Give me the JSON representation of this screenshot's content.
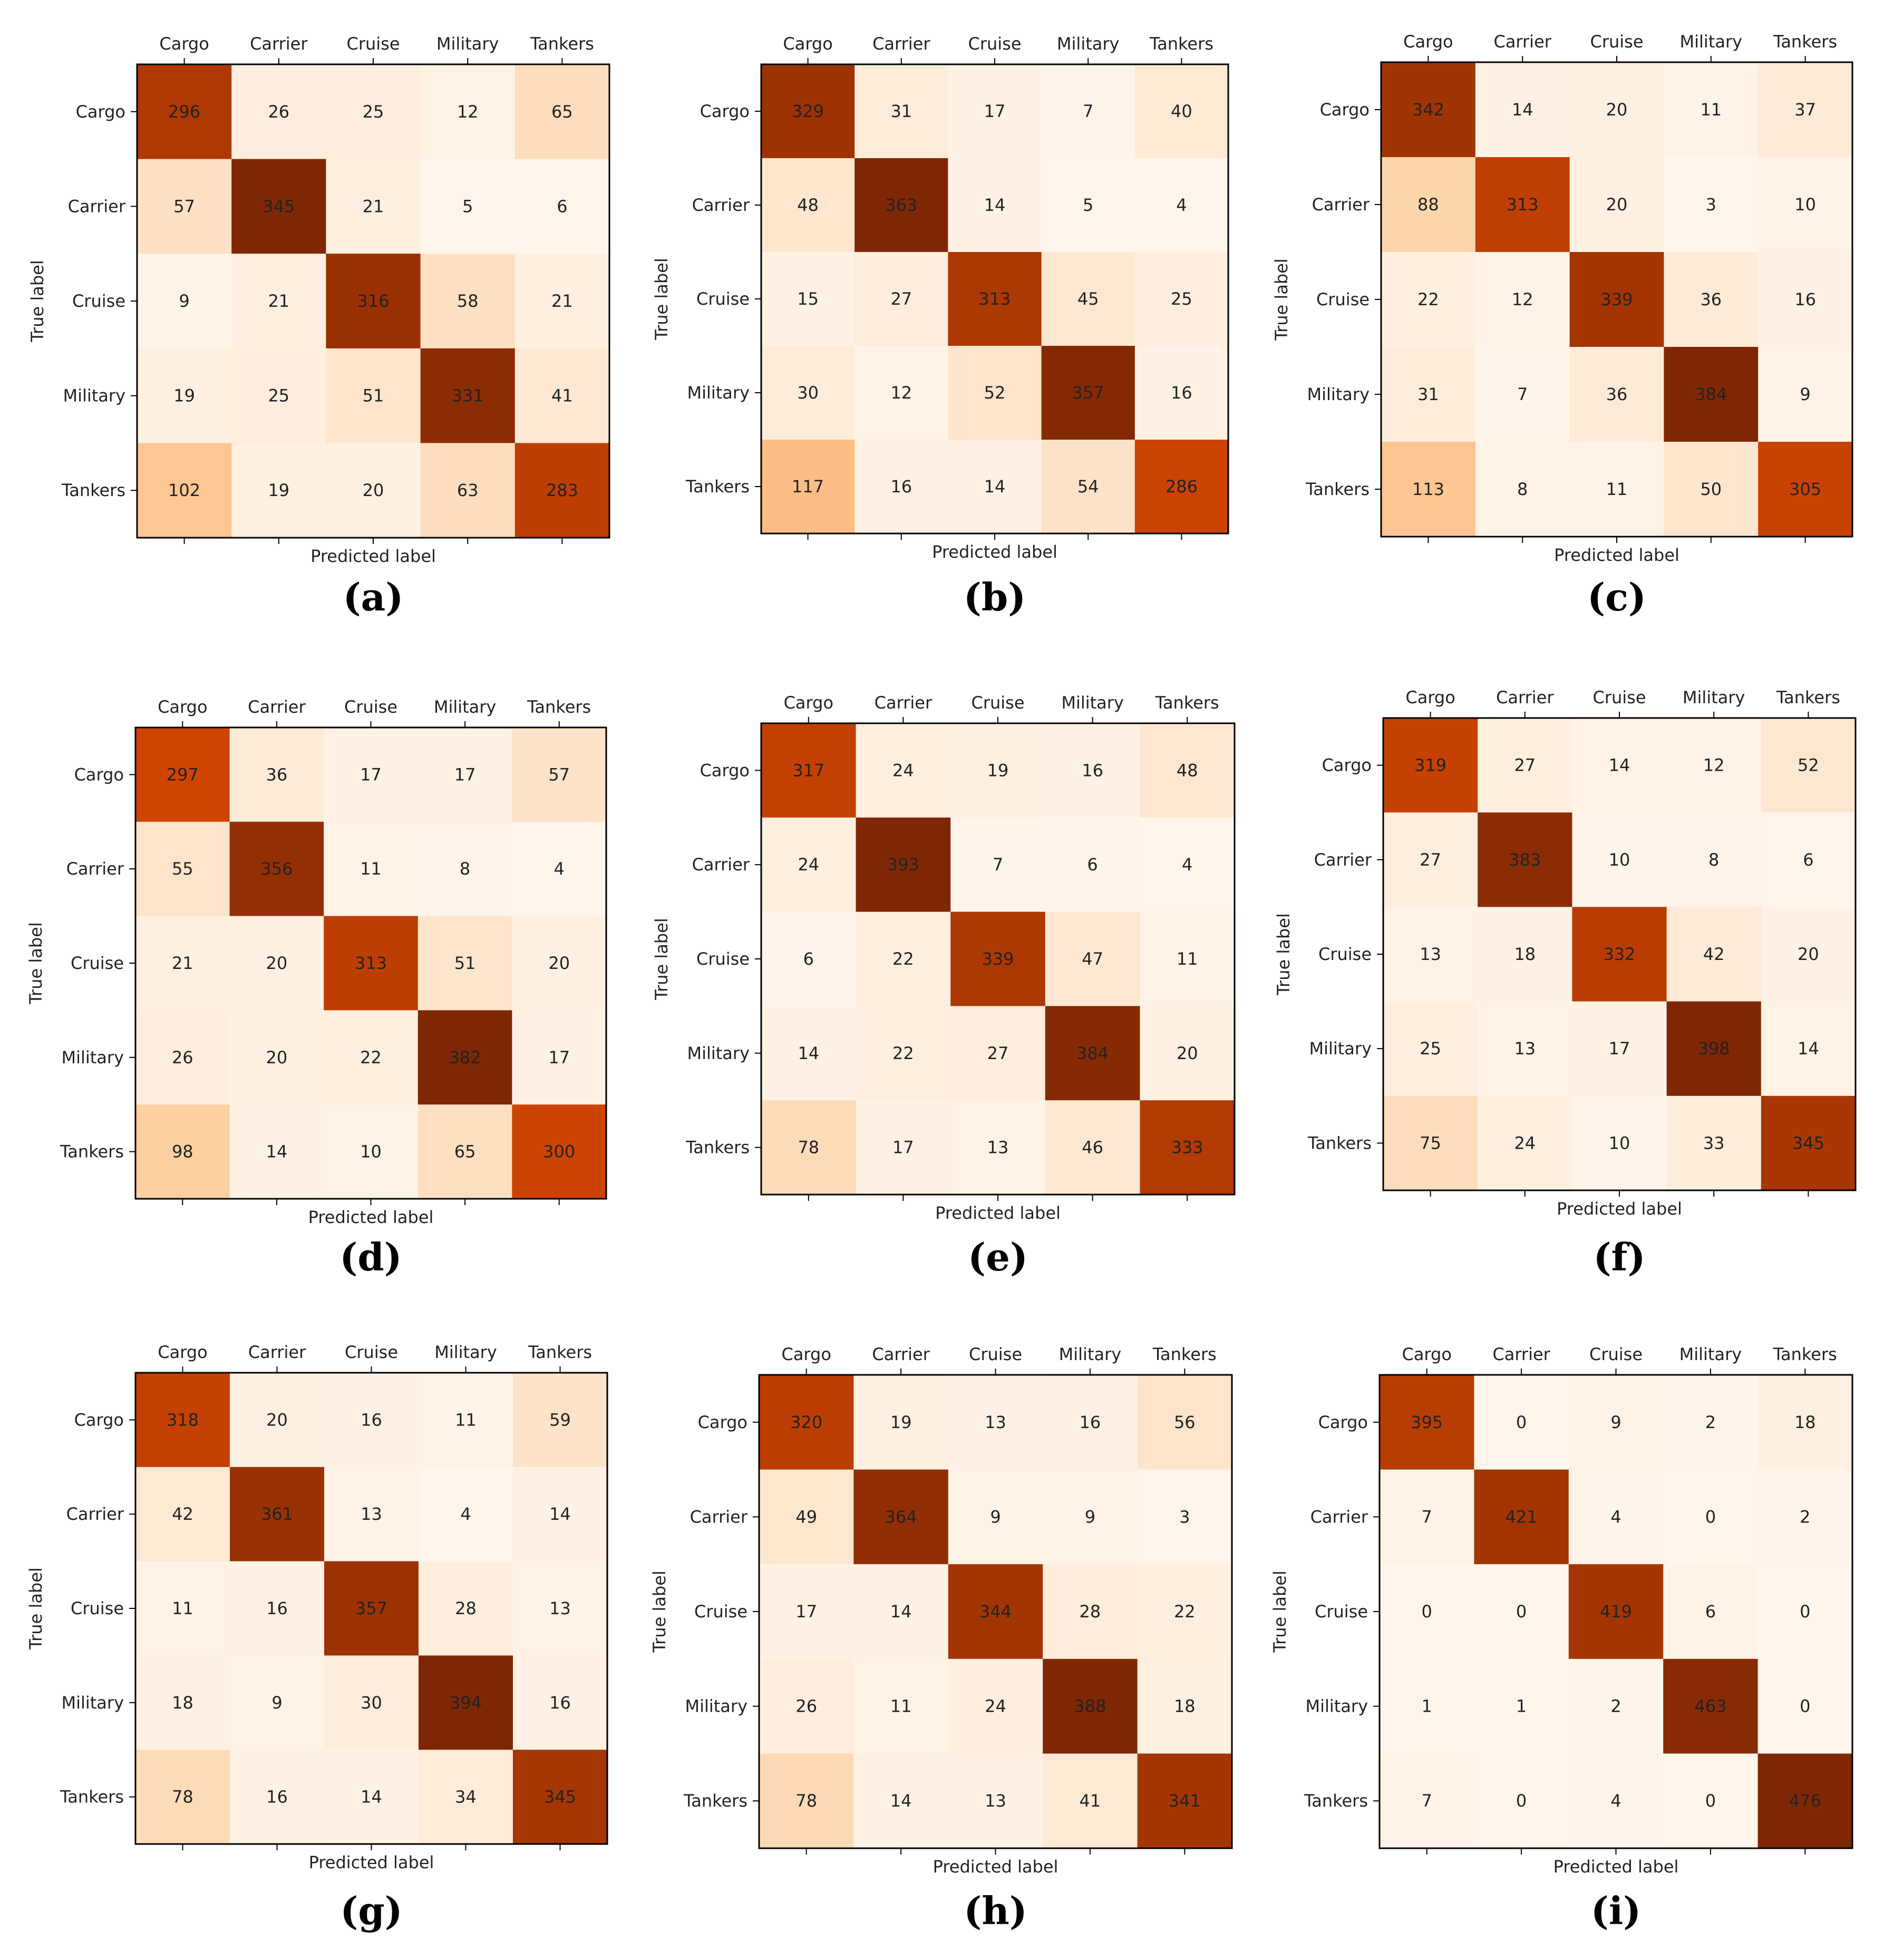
{
  "chart_data": [
    {
      "type": "heatmap",
      "caption": "(a)",
      "xlabel": "Predicted label",
      "ylabel": "True label",
      "x_categories": [
        "Cargo",
        "Carrier",
        "Cruise",
        "Military",
        "Tankers"
      ],
      "y_categories": [
        "Cargo",
        "Carrier",
        "Cruise",
        "Military",
        "Tankers"
      ],
      "values": [
        [
          296,
          26,
          25,
          12,
          65
        ],
        [
          57,
          345,
          21,
          5,
          6
        ],
        [
          9,
          21,
          316,
          58,
          21
        ],
        [
          19,
          25,
          51,
          331,
          41
        ],
        [
          102,
          19,
          20,
          63,
          283
        ]
      ]
    },
    {
      "type": "heatmap",
      "caption": "(b)",
      "xlabel": "Predicted label",
      "ylabel": "True label",
      "x_categories": [
        "Cargo",
        "Carrier",
        "Cruise",
        "Military",
        "Tankers"
      ],
      "y_categories": [
        "Cargo",
        "Carrier",
        "Cruise",
        "Military",
        "Tankers"
      ],
      "values": [
        [
          329,
          31,
          17,
          7,
          40
        ],
        [
          48,
          363,
          14,
          5,
          4
        ],
        [
          15,
          27,
          313,
          45,
          25
        ],
        [
          30,
          12,
          52,
          357,
          16
        ],
        [
          117,
          16,
          14,
          54,
          286
        ]
      ]
    },
    {
      "type": "heatmap",
      "caption": "(c)",
      "xlabel": "Predicted label",
      "ylabel": "True label",
      "x_categories": [
        "Cargo",
        "Carrier",
        "Cruise",
        "Military",
        "Tankers"
      ],
      "y_categories": [
        "Cargo",
        "Carrier",
        "Cruise",
        "Military",
        "Tankers"
      ],
      "values": [
        [
          342,
          14,
          20,
          11,
          37
        ],
        [
          88,
          313,
          20,
          3,
          10
        ],
        [
          22,
          12,
          339,
          36,
          16
        ],
        [
          31,
          7,
          36,
          384,
          9
        ],
        [
          113,
          8,
          11,
          50,
          305
        ]
      ]
    },
    {
      "type": "heatmap",
      "caption": "(d)",
      "xlabel": "Predicted label",
      "ylabel": "True label",
      "x_categories": [
        "Cargo",
        "Carrier",
        "Cruise",
        "Military",
        "Tankers"
      ],
      "y_categories": [
        "Cargo",
        "Carrier",
        "Cruise",
        "Military",
        "Tankers"
      ],
      "values": [
        [
          297,
          36,
          17,
          17,
          57
        ],
        [
          55,
          356,
          11,
          8,
          4
        ],
        [
          21,
          20,
          313,
          51,
          20
        ],
        [
          26,
          20,
          22,
          382,
          17
        ],
        [
          98,
          14,
          10,
          65,
          300
        ]
      ]
    },
    {
      "type": "heatmap",
      "caption": "(e)",
      "xlabel": "Predicted label",
      "ylabel": "True label",
      "x_categories": [
        "Cargo",
        "Carrier",
        "Cruise",
        "Military",
        "Tankers"
      ],
      "y_categories": [
        "Cargo",
        "Carrier",
        "Cruise",
        "Military",
        "Tankers"
      ],
      "values": [
        [
          317,
          24,
          19,
          16,
          48
        ],
        [
          24,
          393,
          7,
          6,
          4
        ],
        [
          6,
          22,
          339,
          47,
          11
        ],
        [
          14,
          22,
          27,
          384,
          20
        ],
        [
          78,
          17,
          13,
          46,
          333
        ]
      ]
    },
    {
      "type": "heatmap",
      "caption": "(f)",
      "xlabel": "Predicted label",
      "ylabel": "True label",
      "x_categories": [
        "Cargo",
        "Carrier",
        "Cruise",
        "Military",
        "Tankers"
      ],
      "y_categories": [
        "Cargo",
        "Carrier",
        "Cruise",
        "Military",
        "Tankers"
      ],
      "values": [
        [
          319,
          27,
          14,
          12,
          52
        ],
        [
          27,
          383,
          10,
          8,
          6
        ],
        [
          13,
          18,
          332,
          42,
          20
        ],
        [
          25,
          13,
          17,
          398,
          14
        ],
        [
          75,
          24,
          10,
          33,
          345
        ]
      ]
    },
    {
      "type": "heatmap",
      "caption": "(g)",
      "xlabel": "Predicted label",
      "ylabel": "True label",
      "x_categories": [
        "Cargo",
        "Carrier",
        "Cruise",
        "Military",
        "Tankers"
      ],
      "y_categories": [
        "Cargo",
        "Carrier",
        "Cruise",
        "Military",
        "Tankers"
      ],
      "values": [
        [
          318,
          20,
          16,
          11,
          59
        ],
        [
          42,
          361,
          13,
          4,
          14
        ],
        [
          11,
          16,
          357,
          28,
          13
        ],
        [
          18,
          9,
          30,
          394,
          16
        ],
        [
          78,
          16,
          14,
          34,
          345
        ]
      ]
    },
    {
      "type": "heatmap",
      "caption": "(h)",
      "xlabel": "Predicted label",
      "ylabel": "True label",
      "x_categories": [
        "Cargo",
        "Carrier",
        "Cruise",
        "Military",
        "Tankers"
      ],
      "y_categories": [
        "Cargo",
        "Carrier",
        "Cruise",
        "Military",
        "Tankers"
      ],
      "values": [
        [
          320,
          19,
          13,
          16,
          56
        ],
        [
          49,
          364,
          9,
          9,
          3
        ],
        [
          17,
          14,
          344,
          28,
          22
        ],
        [
          26,
          11,
          24,
          388,
          18
        ],
        [
          78,
          14,
          13,
          41,
          341
        ]
      ]
    },
    {
      "type": "heatmap",
      "caption": "(i)",
      "xlabel": "Predicted label",
      "ylabel": "True label",
      "x_categories": [
        "Cargo",
        "Carrier",
        "Cruise",
        "Military",
        "Tankers"
      ],
      "y_categories": [
        "Cargo",
        "Carrier",
        "Cruise",
        "Military",
        "Tankers"
      ],
      "values": [
        [
          395,
          0,
          9,
          2,
          18
        ],
        [
          7,
          421,
          4,
          0,
          2
        ],
        [
          0,
          0,
          419,
          6,
          0
        ],
        [
          1,
          1,
          2,
          463,
          0
        ],
        [
          7,
          0,
          4,
          0,
          476
        ]
      ]
    }
  ],
  "style": {
    "colormap": "Oranges",
    "color_low": "#fff5eb",
    "color_high": "#7f2704",
    "text_color": "#222222",
    "axis_color": "#000000"
  }
}
